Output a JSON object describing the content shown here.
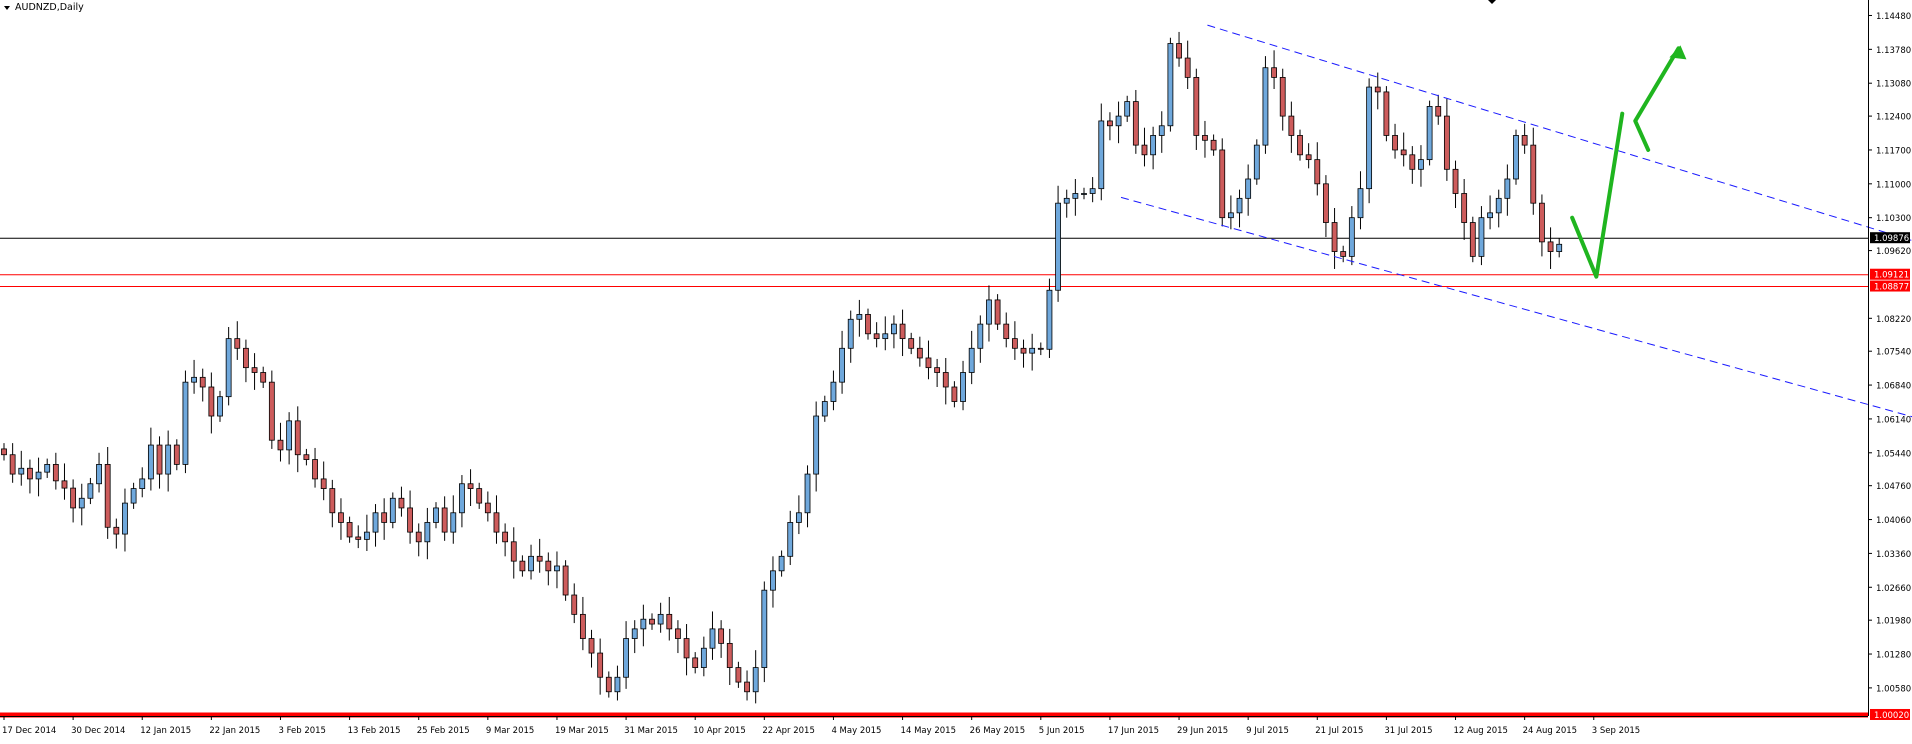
{
  "symbol_title": "AUDNZD,Daily",
  "price_axis": {
    "ticks": [
      "1.14480",
      "1.13780",
      "1.13080",
      "1.12400",
      "1.11700",
      "1.11000",
      "1.10300",
      "1.09620",
      "1.08220",
      "1.07540",
      "1.06840",
      "1.06140",
      "1.05440",
      "1.04760",
      "1.04060",
      "1.03360",
      "1.02660",
      "1.01980",
      "1.01280",
      "1.00580"
    ],
    "current_price_label": "1.09876",
    "resistance_labels": [
      "1.09121",
      "1.08877"
    ],
    "floor_label": "1.00020"
  },
  "time_axis": {
    "labels": [
      "17 Dec 2014",
      "30 Dec 2014",
      "12 Jan 2015",
      "22 Jan 2015",
      "3 Feb 2015",
      "13 Feb 2015",
      "25 Feb 2015",
      "9 Mar 2015",
      "19 Mar 2015",
      "31 Mar 2015",
      "10 Apr 2015",
      "22 Apr 2015",
      "4 May 2015",
      "14 May 2015",
      "26 May 2015",
      "5 Jun 2015",
      "17 Jun 2015",
      "29 Jun 2015",
      "9 Jul 2015",
      "21 Jul 2015",
      "31 Jul 2015",
      "12 Aug 2015",
      "24 Aug 2015",
      "3 Sep 2015"
    ]
  },
  "colors": {
    "bull_candle": "#6fa8dc",
    "bear_candle": "#cd5c5c",
    "candle_outline": "#000000",
    "horizontal_red": "#ff0000",
    "channel_blue": "#1a1aff",
    "forecast_green": "#1fb51f",
    "current_price_line": "#000000"
  },
  "chart_data": {
    "type": "candlestick",
    "symbol": "AUDNZD",
    "timeframe": "Daily",
    "x_range": [
      "2014-12-17",
      "2015-09-07"
    ],
    "y_range": [
      0.99999,
      1.148
    ],
    "current_price": 1.09876,
    "horizontal_levels": [
      1.09121,
      1.08877,
      1.0002
    ],
    "descending_channel": {
      "upper_line": [
        [
          "2015-06-30",
          1.1428
        ],
        [
          "2015-10-28",
          1.096
        ]
      ],
      "lower_line": [
        [
          "2015-06-16",
          1.1072
        ],
        [
          "2015-10-28",
          1.0598
        ]
      ]
    },
    "forecast_path": [
      1.103,
      1.0908,
      1.1245
    ],
    "forecast_arrow": [
      1.117,
      1.123,
      1.138
    ],
    "closes": [
      1.054,
      1.05,
      1.0512,
      1.049,
      1.0504,
      1.052,
      1.0486,
      1.0471,
      1.043,
      1.045,
      1.048,
      1.052,
      1.039,
      1.0376,
      1.044,
      1.047,
      1.049,
      1.056,
      1.05,
      1.056,
      1.052,
      1.069,
      1.07,
      1.068,
      1.062,
      1.066,
      1.078,
      1.076,
      1.072,
      1.071,
      1.069,
      1.057,
      1.055,
      1.061,
      1.054,
      1.053,
      1.049,
      1.047,
      1.042,
      1.04,
      1.037,
      1.0365,
      1.038,
      1.042,
      1.04,
      1.045,
      1.043,
      1.038,
      1.036,
      1.04,
      1.043,
      1.038,
      1.042,
      1.048,
      1.047,
      1.044,
      1.042,
      1.038,
      1.036,
      1.032,
      1.03,
      1.033,
      1.032,
      1.03,
      1.031,
      1.025,
      1.021,
      1.016,
      1.013,
      1.008,
      1.005,
      1.008,
      1.016,
      1.018,
      1.02,
      1.019,
      1.021,
      1.018,
      1.016,
      1.012,
      1.01,
      1.014,
      1.018,
      1.015,
      1.01,
      1.007,
      1.005,
      1.01,
      1.026,
      1.03,
      1.033,
      1.04,
      1.042,
      1.05,
      1.062,
      1.065,
      1.069,
      1.076,
      1.082,
      1.083,
      1.079,
      1.078,
      1.079,
      1.081,
      1.078,
      1.076,
      1.074,
      1.072,
      1.071,
      1.068,
      1.065,
      1.071,
      1.076,
      1.081,
      1.086,
      1.081,
      1.078,
      1.076,
      1.075,
      1.076,
      1.0758,
      1.088,
      1.106,
      1.107,
      1.108,
      1.108,
      1.109,
      1.123,
      1.122,
      1.124,
      1.127,
      1.118,
      1.116,
      1.12,
      1.122,
      1.139,
      1.136,
      1.132,
      1.12,
      1.119,
      1.117,
      1.103,
      1.104,
      1.107,
      1.111,
      1.118,
      1.134,
      1.132,
      1.124,
      1.12,
      1.116,
      1.115,
      1.11,
      1.102,
      1.096,
      1.095,
      1.103,
      1.109,
      1.13,
      1.129,
      1.12,
      1.117,
      1.116,
      1.113,
      1.115,
      1.126,
      1.124,
      1.113,
      1.108,
      1.102,
      1.095,
      1.103,
      1.104,
      1.107,
      1.111,
      1.12,
      1.118,
      1.106,
      1.098,
      1.096,
      1.0975
    ],
    "title": "AUDNZD,Daily"
  }
}
